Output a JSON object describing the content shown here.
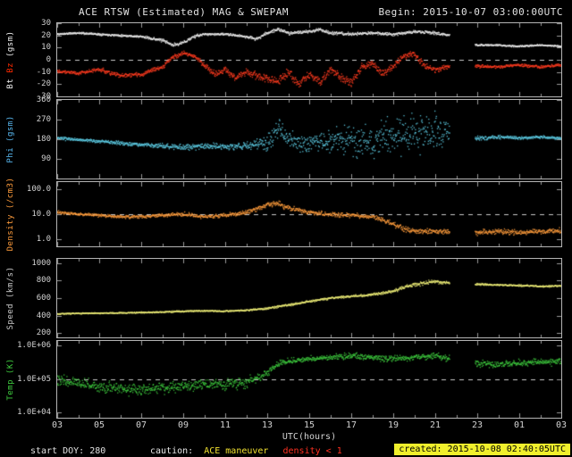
{
  "header": {
    "title": "ACE RTSW (Estimated) MAG & SWEPAM",
    "begin": "Begin: 2015-10-07 03:00:00UTC"
  },
  "footer": {
    "xlabel": "UTC(hours)",
    "start_doy": "start DOY: 280",
    "caution_label": "caution:",
    "caution_text": "ACE maneuver",
    "caution_density": "density < 1",
    "created": "created: 2015-10-08 02:40:05UTC"
  },
  "colors": {
    "background": "#000000",
    "panel_border": "#b4b4b4",
    "dashed_line": "#c8c8c8",
    "tick": "#9a9a9a"
  },
  "axis": {
    "x_hours_start": 3,
    "x_hours_end": 27,
    "x_tick_hours": [
      3,
      5,
      7,
      9,
      11,
      13,
      15,
      17,
      19,
      21,
      23,
      25,
      27
    ],
    "x_tick_labels": [
      "03",
      "05",
      "07",
      "09",
      "11",
      "13",
      "15",
      "17",
      "19",
      "21",
      "23",
      "01",
      "03"
    ],
    "gaps": [
      [
        21.7,
        22.9
      ]
    ]
  },
  "chart_data": [
    {
      "type": "scatter",
      "name": "bt-bz",
      "ylabel_parts": [
        {
          "text": "Bt",
          "color": "#f2f2f2"
        },
        {
          "text": " Bz",
          "color": "#ff2a00"
        },
        {
          "text": " (gsm)",
          "color": "#f2f2f2"
        }
      ],
      "scale": "linear",
      "ylim": [
        -30,
        30
      ],
      "yticks": [
        {
          "v": 30,
          "label": "30"
        },
        {
          "v": 20,
          "label": "20"
        },
        {
          "v": 10,
          "label": "10"
        },
        {
          "v": 0,
          "label": "0"
        },
        {
          "v": -10,
          "label": "-10"
        },
        {
          "v": -20,
          "label": "-20"
        },
        {
          "v": -30,
          "label": "-30"
        }
      ],
      "dashed": [
        0
      ],
      "wrap": false,
      "series": [
        {
          "name": "Bt",
          "color": "#efefef",
          "seed": 11,
          "x": [
            3,
            4,
            5,
            6,
            7,
            8,
            8.5,
            9,
            9.5,
            10,
            11,
            12,
            12.5,
            13,
            13.5,
            14,
            15,
            15.5,
            16,
            17,
            18,
            19,
            20,
            21,
            21.7,
            23,
            24,
            25,
            26,
            27
          ],
          "y": [
            21,
            22,
            21,
            20,
            19,
            16,
            12,
            14,
            19,
            21,
            21,
            19,
            17,
            22,
            25,
            22,
            23,
            25,
            22,
            21,
            22,
            21,
            23,
            22,
            20,
            12,
            12,
            11,
            12,
            11
          ],
          "jitter": [
            1,
            1,
            1,
            1,
            1,
            1.5,
            1.5,
            1.5,
            1.5,
            1,
            1,
            1.5,
            1.5,
            1.5,
            1.5,
            1.5,
            1.5,
            1.5,
            1.5,
            1.5,
            1.5,
            1.5,
            1.5,
            1.5,
            1,
            0.8,
            0.8,
            0.8,
            0.8,
            0.8
          ]
        },
        {
          "name": "Bz",
          "color": "#ff3b1f",
          "seed": 22,
          "x": [
            3,
            4,
            5,
            6,
            7,
            8,
            8.5,
            9,
            9.5,
            10,
            10.5,
            11,
            11.5,
            12,
            13,
            13.5,
            14,
            14.5,
            15,
            15.5,
            16,
            16.5,
            17,
            17.5,
            18,
            18.5,
            19,
            19.5,
            20,
            20.5,
            21,
            21.7,
            23,
            24,
            25,
            26,
            27
          ],
          "y": [
            -9,
            -11,
            -8,
            -13,
            -12,
            -6,
            2,
            6,
            3,
            -4,
            -12,
            -8,
            -15,
            -10,
            -16,
            -18,
            -10,
            -20,
            -12,
            -18,
            -8,
            -15,
            -18,
            -6,
            -3,
            -12,
            -5,
            3,
            5,
            -5,
            -8,
            -5,
            -5,
            -6,
            -4,
            -6,
            -4
          ],
          "jitter": [
            1.5,
            1.5,
            2,
            2,
            2,
            2,
            2,
            2,
            2,
            3,
            3,
            3,
            3,
            3,
            4,
            4,
            4,
            4,
            4,
            4,
            4,
            4,
            4,
            4,
            4,
            4,
            4,
            3,
            3,
            3,
            3,
            2,
            1.5,
            1.5,
            1.5,
            1.5,
            1.5
          ]
        }
      ]
    },
    {
      "type": "scatter",
      "name": "phi",
      "ylabel_parts": [
        {
          "text": "Phi (gsm)",
          "color": "#58b8f0"
        }
      ],
      "scale": "linear",
      "ylim": [
        0,
        360
      ],
      "yticks": [
        {
          "v": 360,
          "label": "360"
        },
        {
          "v": 270,
          "label": "270"
        },
        {
          "v": 180,
          "label": "180"
        },
        {
          "v": 90,
          "label": "90"
        }
      ],
      "dashed": [],
      "wrap": true,
      "series": [
        {
          "name": "Phi",
          "color": "#5ecfe8",
          "seed": 33,
          "x": [
            3,
            4,
            5,
            6,
            7,
            8,
            9,
            10,
            11,
            12,
            13,
            13.5,
            14,
            15,
            16,
            17,
            18,
            19,
            20,
            21,
            21.7,
            23,
            24,
            25,
            26,
            27
          ],
          "y": [
            185,
            178,
            170,
            162,
            155,
            150,
            142,
            150,
            146,
            150,
            165,
            230,
            175,
            160,
            170,
            180,
            175,
            190,
            200,
            215,
            200,
            185,
            190,
            186,
            190,
            185
          ],
          "jitter": [
            8,
            8,
            8,
            10,
            10,
            14,
            18,
            16,
            16,
            18,
            40,
            70,
            45,
            55,
            65,
            80,
            90,
            100,
            100,
            95,
            70,
            12,
            10,
            8,
            8,
            8
          ]
        }
      ]
    },
    {
      "type": "scatter",
      "name": "density",
      "ylabel_parts": [
        {
          "text": "Density (/cm3)",
          "color": "#ff9c3c"
        }
      ],
      "scale": "log",
      "ylim": [
        0.5,
        200
      ],
      "yticks": [
        {
          "v": 100,
          "label": "100.0"
        },
        {
          "v": 10,
          "label": "10.0"
        },
        {
          "v": 1,
          "label": "1.0"
        }
      ],
      "dashed": [
        10
      ],
      "wrap": false,
      "series": [
        {
          "name": "Density",
          "color": "#ff9c3c",
          "seed": 44,
          "x": [
            3,
            4,
            5,
            6,
            7,
            8,
            9,
            10,
            11,
            12,
            12.5,
            13,
            13.5,
            14,
            15,
            16,
            17,
            18,
            18.5,
            19,
            19.5,
            20,
            21,
            21.7,
            23,
            24,
            25,
            26,
            27
          ],
          "y": [
            12,
            10,
            9,
            8,
            8,
            9,
            10,
            8,
            9,
            12,
            16,
            25,
            28,
            18,
            12,
            10,
            9,
            8,
            6,
            4,
            2.5,
            2,
            2,
            2,
            1.8,
            2,
            1.8,
            2,
            2.2
          ],
          "jitter": [
            0.08,
            0.08,
            0.08,
            0.08,
            0.08,
            0.08,
            0.1,
            0.1,
            0.1,
            0.1,
            0.12,
            0.12,
            0.12,
            0.12,
            0.1,
            0.1,
            0.1,
            0.1,
            0.12,
            0.15,
            0.15,
            0.12,
            0.12,
            0.1,
            0.12,
            0.12,
            0.12,
            0.12,
            0.12
          ]
        }
      ]
    },
    {
      "type": "scatter",
      "name": "speed",
      "ylabel_parts": [
        {
          "text": "Speed (km/s)",
          "color": "#cccccc"
        }
      ],
      "scale": "linear",
      "ylim": [
        150,
        1050
      ],
      "yticks": [
        {
          "v": 1000,
          "label": "1000"
        },
        {
          "v": 800,
          "label": "800"
        },
        {
          "v": 600,
          "label": "600"
        },
        {
          "v": 400,
          "label": "400"
        },
        {
          "v": 200,
          "label": "200"
        }
      ],
      "dashed": [],
      "wrap": false,
      "series": [
        {
          "name": "Speed",
          "color": "#f0f078",
          "seed": 55,
          "x": [
            3,
            4,
            5,
            6,
            7,
            8,
            9,
            10,
            11,
            12,
            13,
            13.5,
            14,
            15,
            16,
            17,
            18,
            19,
            19.5,
            20,
            20.5,
            21,
            21.5,
            23,
            24,
            25,
            26,
            27
          ],
          "y": [
            420,
            425,
            428,
            430,
            435,
            440,
            450,
            455,
            450,
            460,
            480,
            505,
            520,
            560,
            600,
            620,
            640,
            680,
            720,
            755,
            775,
            790,
            775,
            760,
            750,
            745,
            735,
            740
          ],
          "jitter": [
            8,
            8,
            8,
            8,
            8,
            8,
            10,
            10,
            10,
            10,
            15,
            18,
            15,
            15,
            15,
            15,
            15,
            20,
            22,
            25,
            25,
            22,
            20,
            15,
            12,
            12,
            12,
            12
          ]
        }
      ]
    },
    {
      "type": "scatter",
      "name": "temp",
      "ylabel_parts": [
        {
          "text": "Temp (K)",
          "color": "#3ecc3e"
        }
      ],
      "scale": "log",
      "ylim": [
        7000,
        1400000
      ],
      "yticks": [
        {
          "v": 1000000,
          "label": "1.0E+06"
        },
        {
          "v": 100000,
          "label": "1.0E+05"
        },
        {
          "v": 10000,
          "label": "1.0E+04"
        }
      ],
      "dashed": [
        100000
      ],
      "wrap": false,
      "series": [
        {
          "name": "Temp",
          "color": "#3ecc3e",
          "seed": 66,
          "x": [
            3,
            4,
            5,
            6,
            7,
            8,
            9,
            10,
            11,
            12,
            13,
            13.5,
            14,
            15,
            16,
            17,
            18,
            19,
            20,
            21,
            21.7,
            23,
            24,
            25,
            26,
            27
          ],
          "y": [
            100000,
            80000,
            60000,
            50000,
            50000,
            55000,
            60000,
            70000,
            70000,
            80000,
            150000,
            300000,
            350000,
            400000,
            450000,
            500000,
            450000,
            400000,
            450000,
            500000,
            400000,
            300000,
            280000,
            300000,
            320000,
            350000
          ],
          "jitter": [
            0.18,
            0.18,
            0.2,
            0.2,
            0.2,
            0.2,
            0.2,
            0.2,
            0.2,
            0.2,
            0.15,
            0.12,
            0.1,
            0.1,
            0.1,
            0.1,
            0.1,
            0.12,
            0.1,
            0.1,
            0.12,
            0.12,
            0.12,
            0.12,
            0.12,
            0.12
          ]
        }
      ]
    }
  ]
}
